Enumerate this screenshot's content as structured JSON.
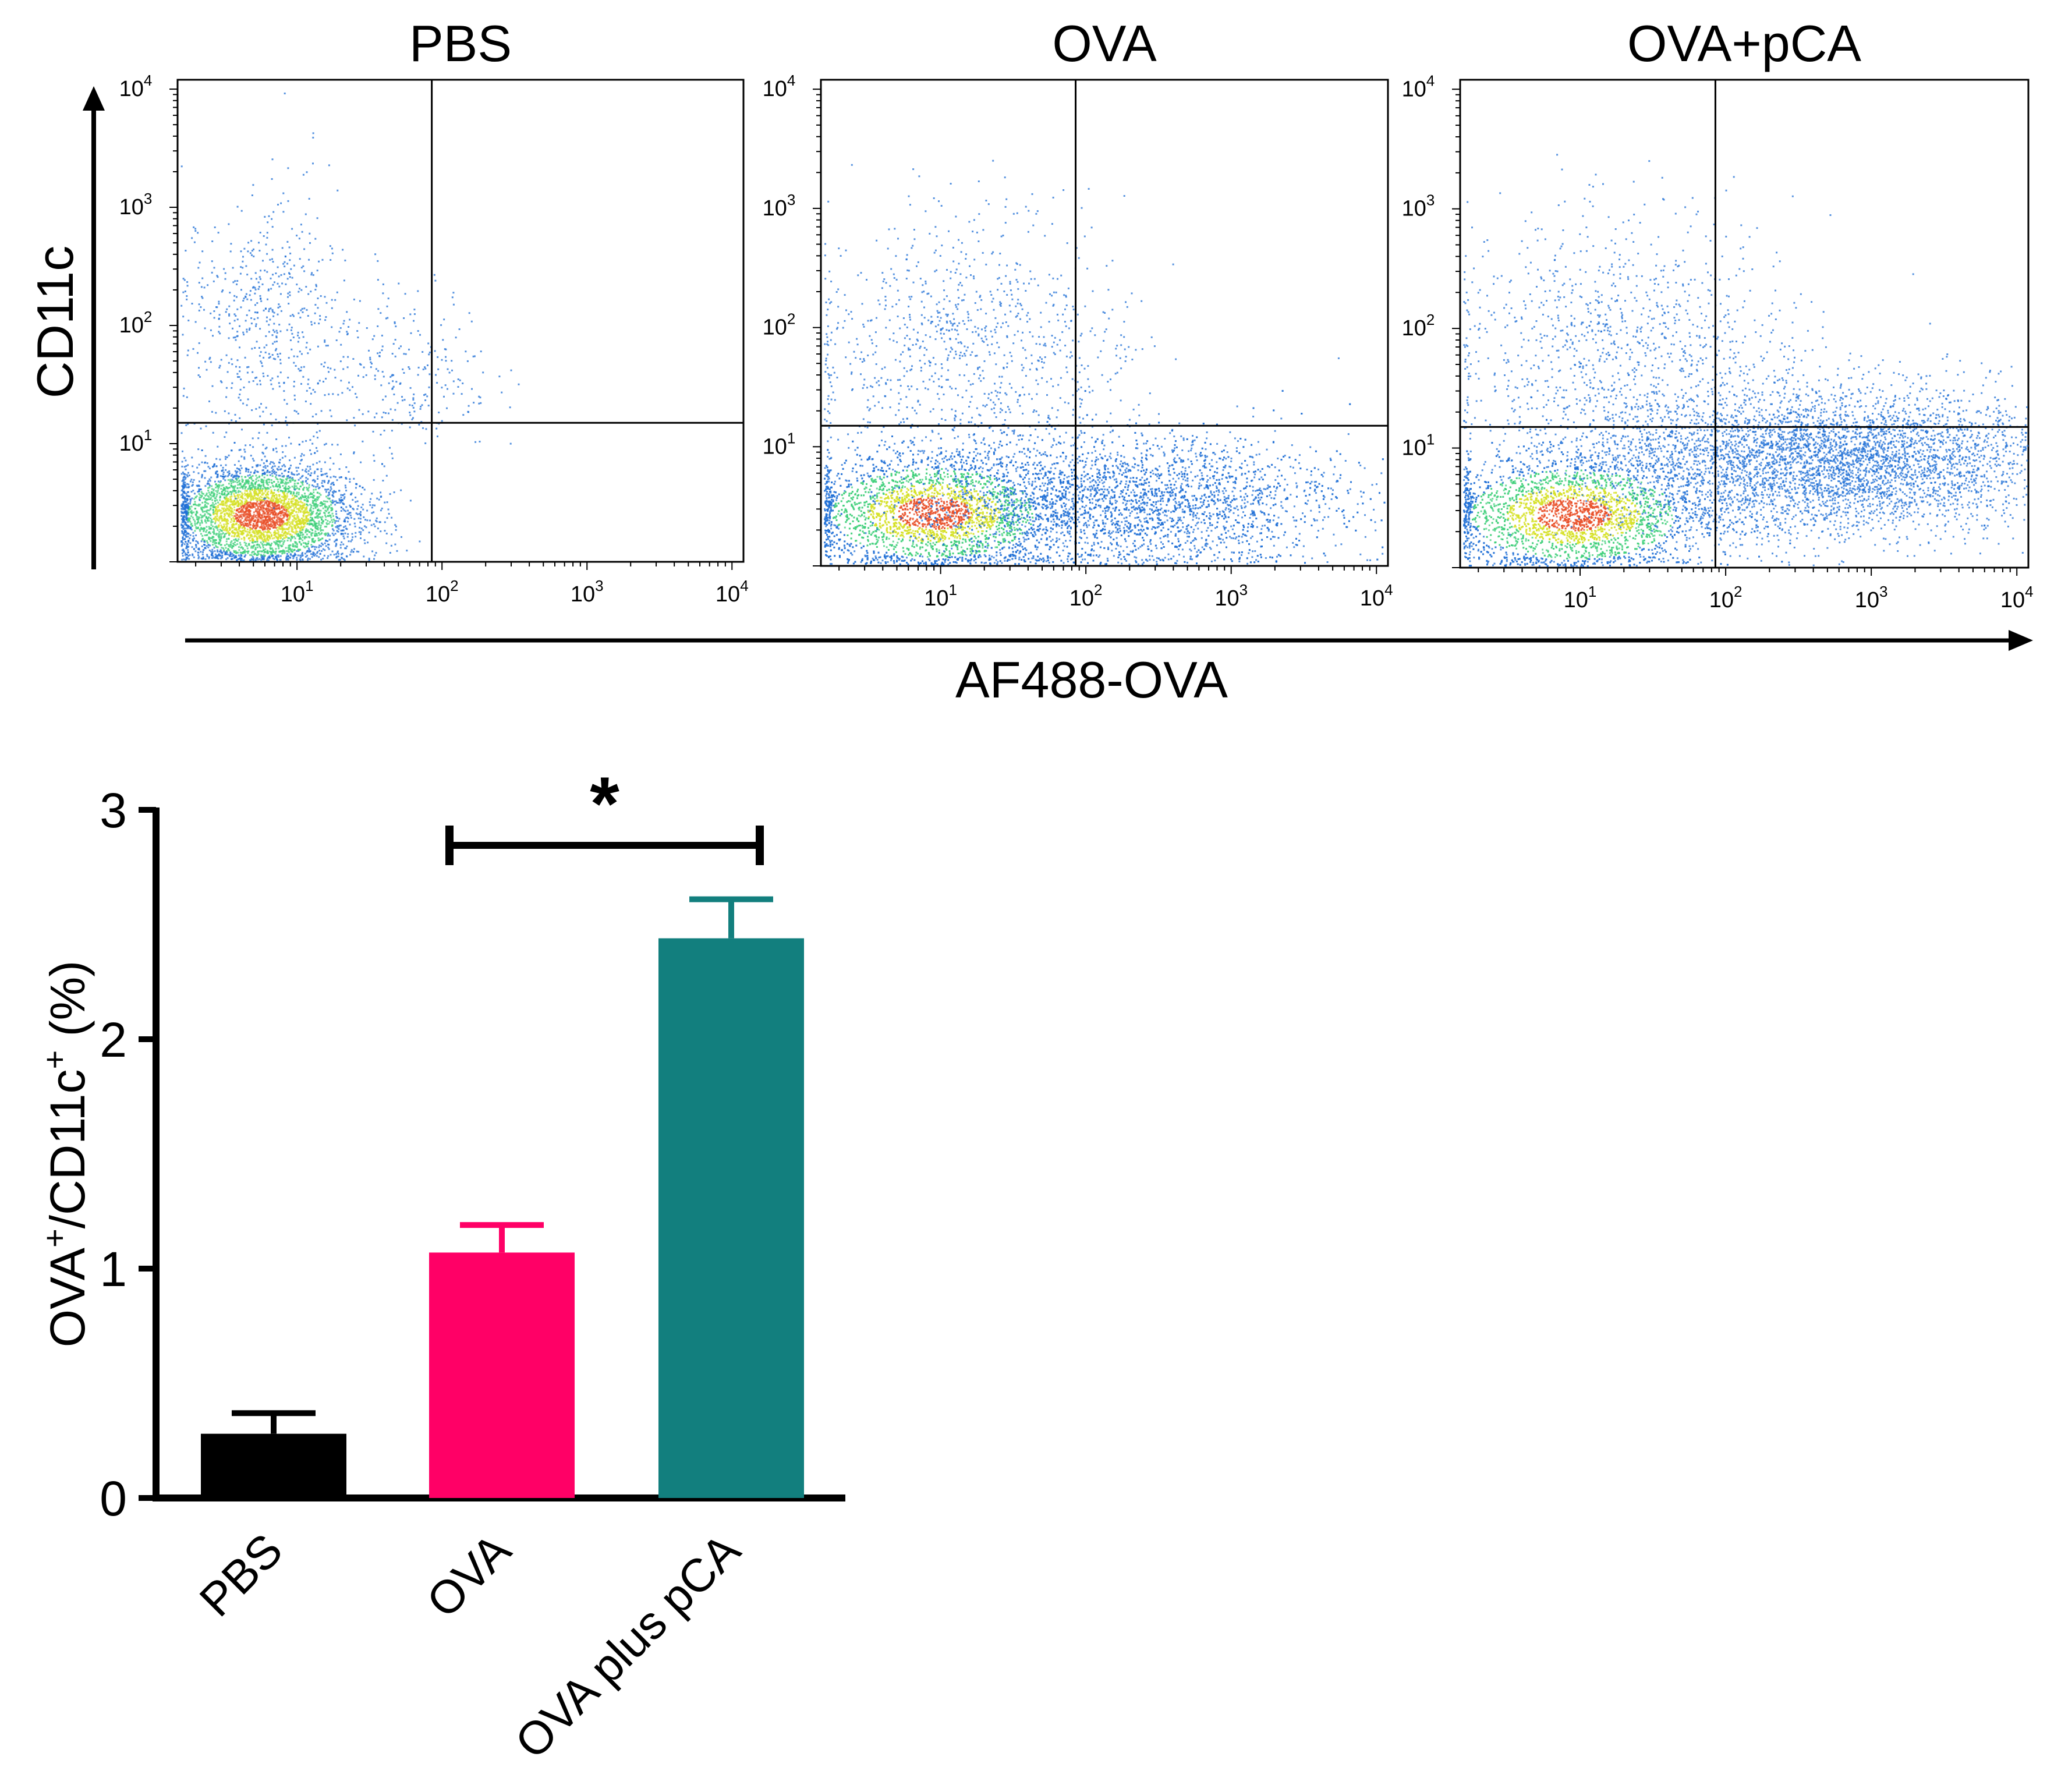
{
  "chart_data": [
    {
      "type": "scatter",
      "subtype": "flow-cytometry-density-plot",
      "panels": [
        {
          "title": "PBS"
        },
        {
          "title": "OVA"
        },
        {
          "title": "OVA+pCA"
        }
      ],
      "xlabel": "AF488-OVA",
      "ylabel": "CD11c",
      "x_scale": "log",
      "y_scale": "log",
      "x_ticks": [
        {
          "base": "10",
          "exp": "1"
        },
        {
          "base": "10",
          "exp": "2"
        },
        {
          "base": "10",
          "exp": "3"
        },
        {
          "base": "10",
          "exp": "4"
        }
      ],
      "y_ticks": [
        {
          "base": "10",
          "exp": "1"
        },
        {
          "base": "10",
          "exp": "2"
        },
        {
          "base": "10",
          "exp": "3"
        },
        {
          "base": "10",
          "exp": "4"
        }
      ],
      "xlim": [
        1.5,
        12000
      ],
      "ylim": [
        1.0,
        12000
      ],
      "gate": {
        "x": 85,
        "y": 15
      },
      "colors": {
        "low": "#1f6fd6",
        "mid": "#3fcf7a",
        "high": "#d6e026",
        "peak": "#e8502a"
      }
    },
    {
      "type": "bar",
      "categories": [
        "PBS",
        "OVA",
        "OVA plus pCA"
      ],
      "values": [
        0.28,
        1.07,
        2.44
      ],
      "errors": [
        0.09,
        0.12,
        0.17
      ],
      "colors": [
        "#000000",
        "#ff0066",
        "#127f7e"
      ],
      "ylabel_parts": {
        "a": "OVA",
        "sup1": "+",
        "b": "/CD11c",
        "sup2": "+",
        "c": " (%)"
      },
      "ylim": [
        0,
        3
      ],
      "yticks": [
        "0",
        "1",
        "2",
        "3"
      ],
      "significance": {
        "between": [
          1,
          2
        ],
        "label": "*"
      }
    }
  ]
}
